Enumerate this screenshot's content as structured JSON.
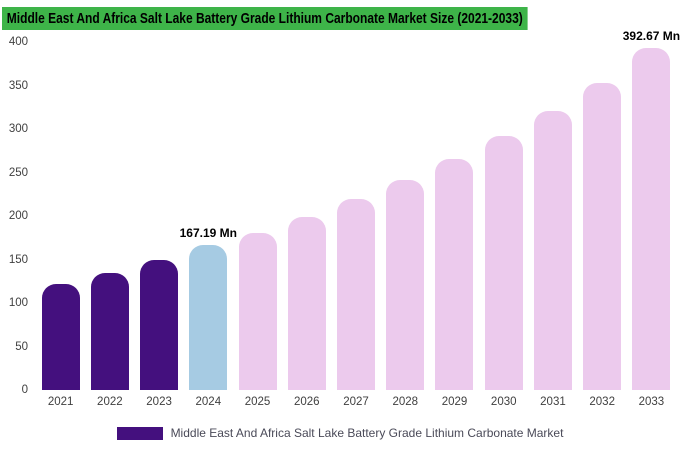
{
  "title": "Middle East And Africa Salt Lake Battery Grade Lithium Carbonate Market Size (2021-2033)",
  "colors": {
    "title_highlight": "#3eb449",
    "historical_bar": "#44107e",
    "current_bar": "#a6cbe3",
    "forecast_bar": "#eccaed",
    "axis_text": "#404040",
    "annotation_text": "#000000"
  },
  "legend": {
    "label": "Middle East And Africa Salt Lake Battery Grade Lithium Carbonate Market",
    "swatch_color": "#44107e"
  },
  "chart_data": {
    "type": "bar",
    "title": "Middle East And Africa Salt Lake Battery Grade Lithium Carbonate Market Size (2021-2033)",
    "xlabel": "",
    "ylabel": "",
    "categories": [
      "2021",
      "2022",
      "2023",
      "2024",
      "2025",
      "2026",
      "2027",
      "2028",
      "2029",
      "2030",
      "2031",
      "2032",
      "2033"
    ],
    "values": [
      122,
      135,
      149,
      167.19,
      181,
      199,
      219,
      241,
      265,
      292,
      321,
      353,
      392.67
    ],
    "ylim": [
      0,
      400
    ],
    "yticks": [
      0,
      50,
      100,
      150,
      200,
      250,
      300,
      350,
      400
    ],
    "grid": false,
    "legend_position": "bottom",
    "bar_colors": [
      "#44107e",
      "#44107e",
      "#44107e",
      "#a6cbe3",
      "#eccaed",
      "#eccaed",
      "#eccaed",
      "#eccaed",
      "#eccaed",
      "#eccaed",
      "#eccaed",
      "#eccaed",
      "#eccaed"
    ],
    "annotations": [
      {
        "category": "2024",
        "text": "167.19 Mn"
      },
      {
        "category": "2033",
        "text": "392.67 Mn"
      }
    ]
  }
}
